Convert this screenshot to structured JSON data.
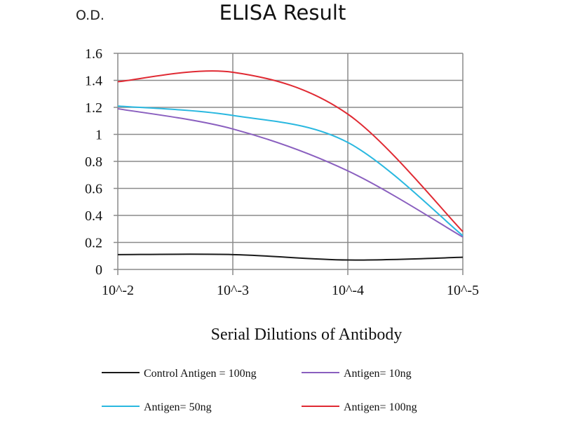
{
  "chart_data": {
    "type": "line",
    "title": "ELISA Result",
    "ylabel": "O.D.",
    "xlabel": "Serial Dilutions of Antibody",
    "categories": [
      "10^-2",
      "10^-3",
      "10^-4",
      "10^-5"
    ],
    "ylim": [
      0,
      1.6
    ],
    "yticks": [
      "0",
      "0.2",
      "0.4",
      "0.6",
      "0.8",
      "1",
      "1.2",
      "1.4",
      "1.6"
    ],
    "grid": true,
    "legend_placement": "bottom",
    "series": [
      {
        "name": "Control Antigen = 100ng",
        "color": "#1a1a1a",
        "values": [
          0.11,
          0.11,
          0.07,
          0.09
        ]
      },
      {
        "name": "Antigen= 10ng",
        "color": "#8a5fbf",
        "values": [
          1.19,
          1.04,
          0.73,
          0.24
        ]
      },
      {
        "name": "Antigen= 50ng",
        "color": "#2ab8e0",
        "values": [
          1.21,
          1.14,
          0.94,
          0.25
        ]
      },
      {
        "name": "Antigen= 100ng",
        "color": "#e02a33",
        "values": [
          1.39,
          1.46,
          1.15,
          0.28
        ]
      }
    ]
  }
}
